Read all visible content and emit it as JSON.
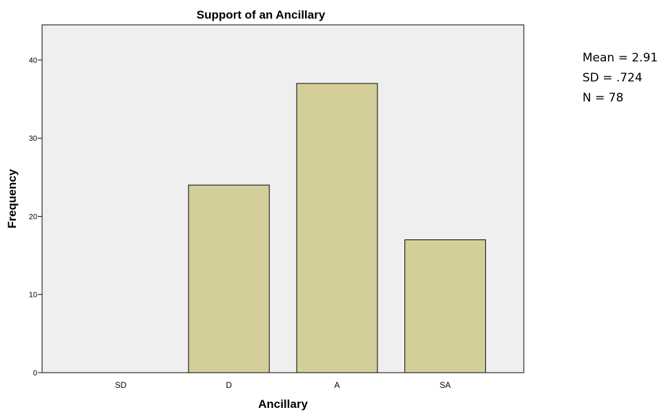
{
  "chart_data": {
    "type": "bar",
    "title": "Support of an Ancillary",
    "xlabel": "Ancillary",
    "ylabel": "Frequency",
    "categories": [
      "SD",
      "D",
      "A",
      "SA"
    ],
    "values": [
      0,
      24,
      37,
      17
    ],
    "ylim": [
      0,
      44.5
    ],
    "yticks": [
      0,
      10,
      20,
      30,
      40
    ],
    "grid": false,
    "legend": "none",
    "colors": {
      "plot_background": "#efefef",
      "bar_fill": "#d4cf9a",
      "bar_stroke": "#000000"
    }
  },
  "stats": {
    "mean": "Mean = 2.91",
    "sd": "SD = .724",
    "n": "N = 78"
  }
}
